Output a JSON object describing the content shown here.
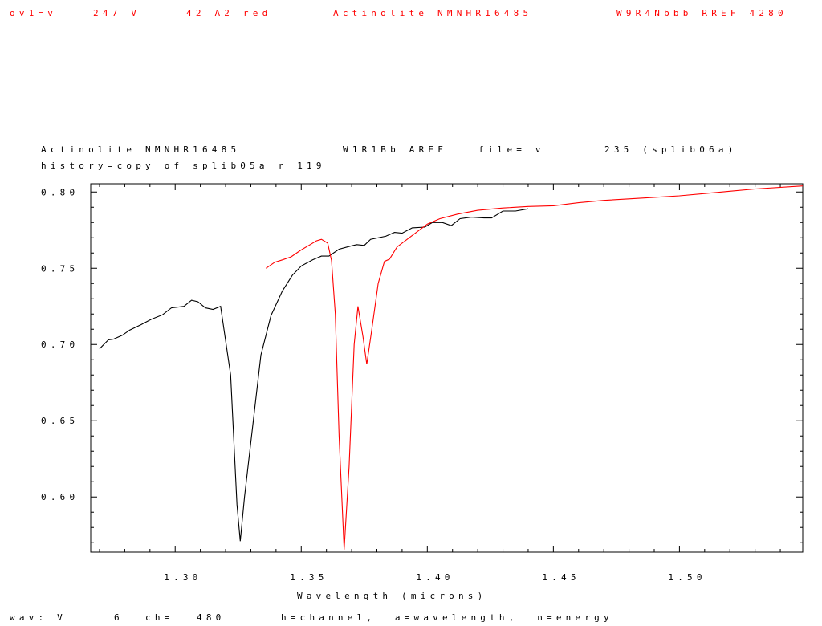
{
  "header": {
    "seg1": "ov1=v",
    "seg2": "247 V",
    "seg3": "42 A2 red",
    "seg4": "Actinolite NMNHR16485",
    "seg5": "W9R4Nbbb RREF 4280"
  },
  "subtitle": {
    "line1_a": "Actinolite NMNHR16485",
    "line1_b": "W1R1Bb AREF",
    "line1_c": "file= v",
    "line1_d": "235 (splib06a)",
    "line2": "history=copy of splib05a r 119"
  },
  "footer": {
    "status_a": "wav: V",
    "status_b": "6",
    "status_c": "ch=",
    "status_d": "480",
    "status_e": "h=channel,  a=wavelength,  n=energy"
  },
  "colors": {
    "series_black": "#000000",
    "series_red": "#ff0000",
    "background": "#ffffff"
  },
  "chart_data": {
    "type": "line",
    "title": "Actinolite NMNHR16485",
    "xlabel": "Wavelength (microns)",
    "ylabel": "",
    "xlim": [
      1.2665,
      1.5489
    ],
    "ylim": [
      0.5638,
      0.8054
    ],
    "xticks": [
      "1.30",
      "1.35",
      "1.40",
      "1.45",
      "1.50"
    ],
    "yticks": [
      "0.80",
      "0.75",
      "0.70",
      "0.65",
      "0.60"
    ],
    "grid": false,
    "series": [
      {
        "color": "#000000",
        "points": [
          [
            1.27,
            0.6972
          ],
          [
            1.2735,
            0.703
          ],
          [
            1.2755,
            0.7035
          ],
          [
            1.279,
            0.706
          ],
          [
            1.282,
            0.7095
          ],
          [
            1.2865,
            0.713
          ],
          [
            1.2905,
            0.7165
          ],
          [
            1.295,
            0.7195
          ],
          [
            1.2985,
            0.724
          ],
          [
            1.3035,
            0.725
          ],
          [
            1.3065,
            0.729
          ],
          [
            1.309,
            0.728
          ],
          [
            1.312,
            0.724
          ],
          [
            1.315,
            0.723
          ],
          [
            1.318,
            0.725
          ],
          [
            1.322,
            0.68
          ],
          [
            1.3245,
            0.595
          ],
          [
            1.3258,
            0.571
          ],
          [
            1.3275,
            0.6
          ],
          [
            1.334,
            0.693
          ],
          [
            1.338,
            0.719
          ],
          [
            1.3425,
            0.735
          ],
          [
            1.3465,
            0.7455
          ],
          [
            1.35,
            0.7515
          ],
          [
            1.3545,
            0.7555
          ],
          [
            1.358,
            0.758
          ],
          [
            1.361,
            0.758
          ],
          [
            1.365,
            0.7625
          ],
          [
            1.3695,
            0.7645
          ],
          [
            1.372,
            0.7655
          ],
          [
            1.375,
            0.765
          ],
          [
            1.3775,
            0.769
          ],
          [
            1.3835,
            0.771
          ],
          [
            1.387,
            0.7735
          ],
          [
            1.39,
            0.773
          ],
          [
            1.394,
            0.7765
          ],
          [
            1.399,
            0.777
          ],
          [
            1.402,
            0.78
          ],
          [
            1.406,
            0.78
          ],
          [
            1.4095,
            0.778
          ],
          [
            1.413,
            0.7825
          ],
          [
            1.4175,
            0.7835
          ],
          [
            1.4225,
            0.783
          ],
          [
            1.4255,
            0.783
          ],
          [
            1.43,
            0.7875
          ],
          [
            1.435,
            0.7875
          ],
          [
            1.44,
            0.789
          ]
        ]
      },
      {
        "color": "#ff0000",
        "points": [
          [
            1.336,
            0.75
          ],
          [
            1.3395,
            0.754
          ],
          [
            1.3425,
            0.7555
          ],
          [
            1.346,
            0.7575
          ],
          [
            1.3495,
            0.7615
          ],
          [
            1.353,
            0.765
          ],
          [
            1.356,
            0.768
          ],
          [
            1.358,
            0.769
          ],
          [
            1.3605,
            0.7665
          ],
          [
            1.362,
            0.755
          ],
          [
            1.3635,
            0.72
          ],
          [
            1.365,
            0.64
          ],
          [
            1.367,
            0.5655
          ],
          [
            1.369,
            0.62
          ],
          [
            1.371,
            0.7
          ],
          [
            1.3725,
            0.725
          ],
          [
            1.3745,
            0.705
          ],
          [
            1.376,
            0.687
          ],
          [
            1.378,
            0.71
          ],
          [
            1.3805,
            0.74
          ],
          [
            1.383,
            0.7545
          ],
          [
            1.385,
            0.756
          ],
          [
            1.388,
            0.764
          ],
          [
            1.392,
            0.769
          ],
          [
            1.396,
            0.774
          ],
          [
            1.4,
            0.779
          ],
          [
            1.405,
            0.7825
          ],
          [
            1.412,
            0.7855
          ],
          [
            1.42,
            0.788
          ],
          [
            1.43,
            0.7895
          ],
          [
            1.44,
            0.7905
          ],
          [
            1.45,
            0.791
          ],
          [
            1.46,
            0.793
          ],
          [
            1.47,
            0.7945
          ],
          [
            1.48,
            0.7955
          ],
          [
            1.49,
            0.7965
          ],
          [
            1.5,
            0.7975
          ],
          [
            1.51,
            0.799
          ],
          [
            1.52,
            0.8005
          ],
          [
            1.53,
            0.802
          ],
          [
            1.5489,
            0.804
          ]
        ]
      }
    ]
  }
}
